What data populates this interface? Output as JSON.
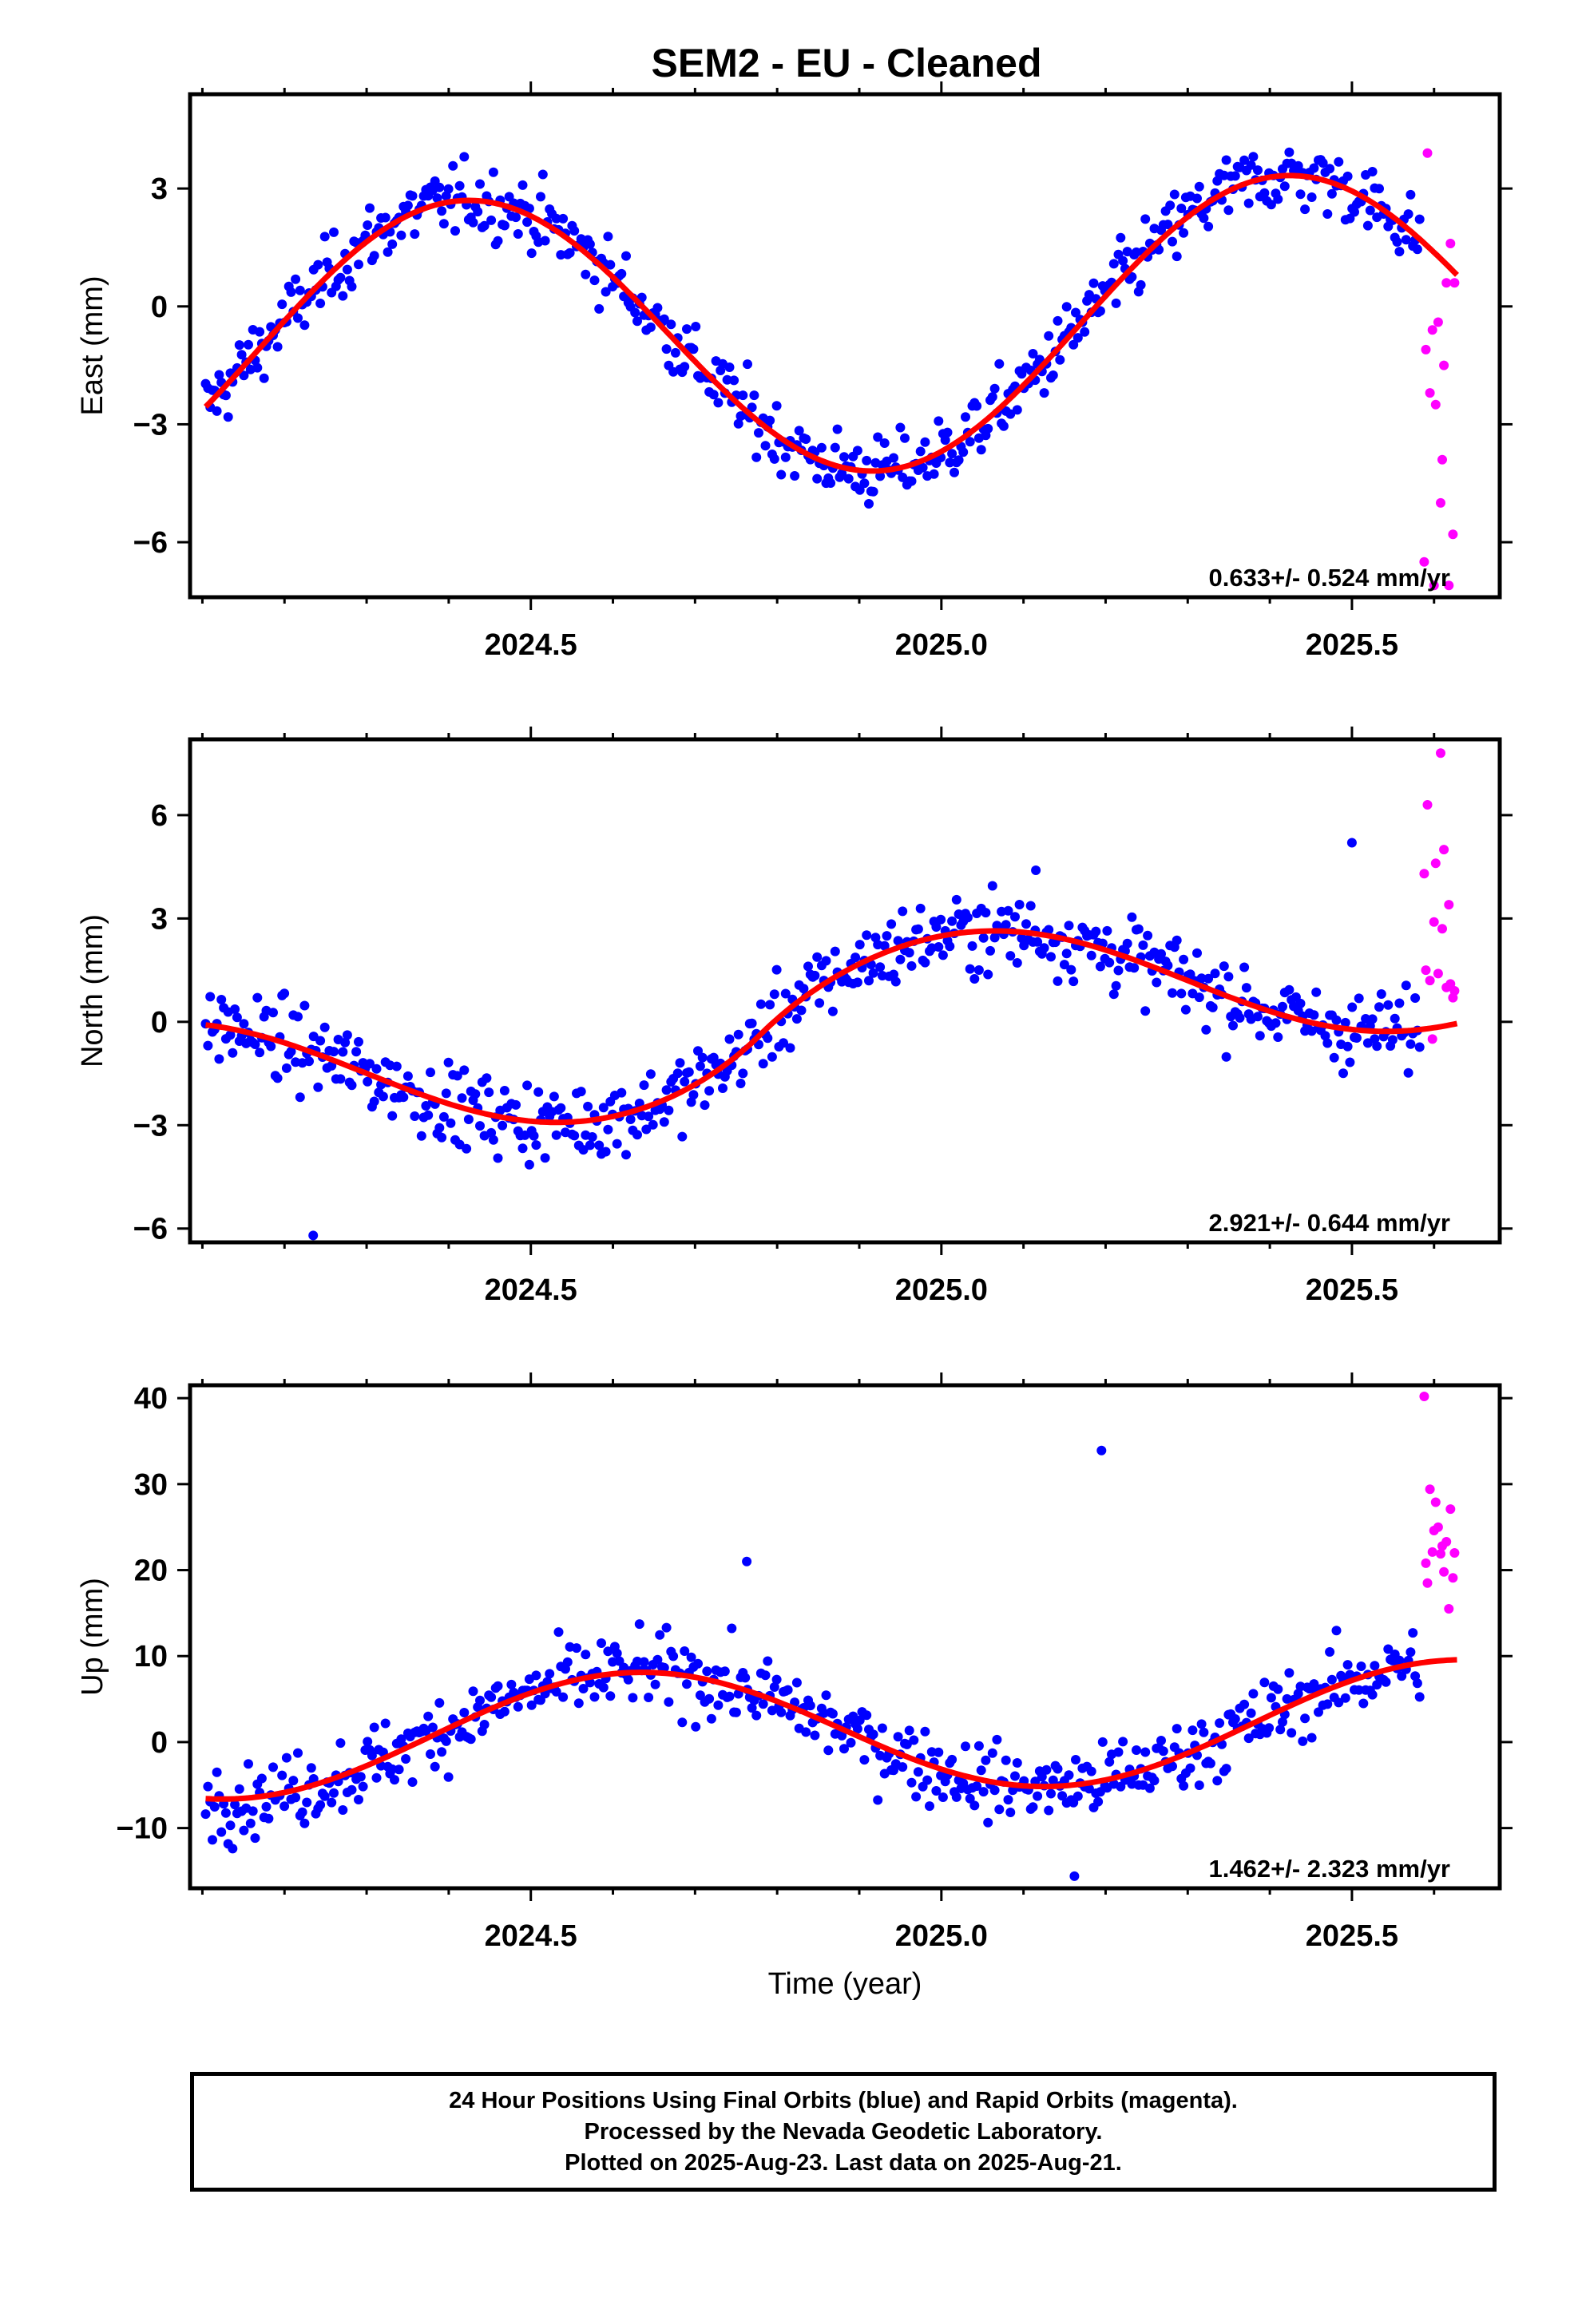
{
  "title": "SEM2  - EU - Cleaned",
  "colors": {
    "final": "#0000ff",
    "rapid": "#ff00ff",
    "fit": "#ff0000",
    "axis": "#000000"
  },
  "chart_data": [
    {
      "type": "scatter",
      "ylabel": "East (mm)",
      "xlabel": "",
      "xlim": [
        2024.085,
        2025.68
      ],
      "ylim": [
        -7.4,
        5.4
      ],
      "xticks": [
        2024.5,
        2025.0,
        2025.5
      ],
      "xtick_labels": [
        "2024.5",
        "2025.0",
        "2025.5"
      ],
      "yticks": [
        -6,
        -3,
        0,
        3
      ],
      "ytick_labels": [
        "−6",
        "−3",
        "0",
        "3"
      ],
      "rate_label": "0.633+/- 0.524 mm/yr",
      "model": {
        "offset": -0.6,
        "amp": 3.6,
        "phase_year": 2024.42,
        "trend": 0.633,
        "t0": 2024.9
      },
      "final_x_range": [
        2024.104,
        2025.584
      ],
      "noise": 0.75,
      "rapid_points": [
        [
          2025.588,
          -6.5
        ],
        [
          2025.59,
          -1.1
        ],
        [
          2025.592,
          3.9
        ],
        [
          2025.595,
          -2.2
        ],
        [
          2025.598,
          -0.6
        ],
        [
          2025.6,
          -7.1
        ],
        [
          2025.602,
          -2.5
        ],
        [
          2025.605,
          -0.4
        ],
        [
          2025.608,
          -5.0
        ],
        [
          2025.61,
          -3.9
        ],
        [
          2025.612,
          -1.5
        ],
        [
          2025.615,
          0.6
        ],
        [
          2025.618,
          -7.1
        ],
        [
          2025.62,
          1.6
        ],
        [
          2025.623,
          -5.8
        ],
        [
          2025.625,
          0.6
        ]
      ],
      "outlier_points": []
    },
    {
      "type": "scatter",
      "ylabel": "North (mm)",
      "xlabel": "",
      "xlim": [
        2024.085,
        2025.68
      ],
      "ylim": [
        -6.4,
        8.2
      ],
      "xticks": [
        2024.5,
        2025.0,
        2025.5
      ],
      "xtick_labels": [
        "2024.5",
        "2025.0",
        "2025.5"
      ],
      "yticks": [
        -6,
        -3,
        0,
        3,
        6
      ],
      "ytick_labels": [
        "−6",
        "−3",
        "0",
        "3",
        "6"
      ],
      "rate_label": "2.921+/- 0.644 mm/yr",
      "model": {
        "offset": -0.1,
        "amp": 1.6,
        "phase_year": 2025.05,
        "trend": 0.5,
        "t0": 2024.9,
        "step": 2.2,
        "step_at": 2024.78
      },
      "final_x_range": [
        2024.104,
        2025.584
      ],
      "noise": 0.95,
      "rapid_points": [
        [
          2025.588,
          4.3
        ],
        [
          2025.59,
          1.5
        ],
        [
          2025.592,
          6.3
        ],
        [
          2025.595,
          1.2
        ],
        [
          2025.598,
          -0.5
        ],
        [
          2025.6,
          2.9
        ],
        [
          2025.602,
          4.6
        ],
        [
          2025.605,
          1.4
        ],
        [
          2025.608,
          7.8
        ],
        [
          2025.61,
          2.7
        ],
        [
          2025.612,
          5.0
        ],
        [
          2025.615,
          1.0
        ],
        [
          2025.618,
          3.4
        ],
        [
          2025.62,
          1.1
        ],
        [
          2025.623,
          0.7
        ],
        [
          2025.625,
          0.9
        ]
      ],
      "outlier_points": [
        [
          2024.235,
          -6.2
        ],
        [
          2025.115,
          4.4
        ],
        [
          2025.5,
          5.2
        ]
      ]
    },
    {
      "type": "scatter",
      "ylabel": "Up (mm)",
      "xlabel": "Time (year)",
      "xlim": [
        2024.085,
        2025.68
      ],
      "ylim": [
        -17,
        41.5
      ],
      "xticks": [
        2024.5,
        2025.0,
        2025.5
      ],
      "xtick_labels": [
        "2024.5",
        "2025.0",
        "2025.5"
      ],
      "yticks": [
        -10,
        0,
        10,
        20,
        30,
        40
      ],
      "ytick_labels": [
        "−10",
        "0",
        "10",
        "20",
        "30",
        "40"
      ],
      "rate_label": "1.462+/- 2.323 mm/yr",
      "model": {
        "offset": 1.5,
        "amp": 7.0,
        "phase_year": 2024.63,
        "trend": 1.462,
        "t0": 2024.9
      },
      "final_x_range": [
        2024.104,
        2025.584
      ],
      "noise": 3.6,
      "rapid_points": [
        [
          2025.588,
          40.2
        ],
        [
          2025.59,
          20.8
        ],
        [
          2025.592,
          18.5
        ],
        [
          2025.595,
          29.4
        ],
        [
          2025.598,
          22.1
        ],
        [
          2025.6,
          24.6
        ],
        [
          2025.602,
          27.9
        ],
        [
          2025.605,
          25.0
        ],
        [
          2025.608,
          21.9
        ],
        [
          2025.61,
          22.8
        ],
        [
          2025.612,
          19.8
        ],
        [
          2025.615,
          23.3
        ],
        [
          2025.618,
          15.5
        ],
        [
          2025.62,
          27.1
        ],
        [
          2025.623,
          19.1
        ],
        [
          2025.625,
          22.0
        ]
      ],
      "outlier_points": [
        [
          2025.195,
          33.9
        ],
        [
          2024.763,
          21.0
        ],
        [
          2025.162,
          -15.6
        ]
      ]
    }
  ],
  "caption": {
    "line1": "24 Hour Positions Using Final Orbits (blue) and Rapid Orbits (magenta).",
    "line2": "Processed by the Nevada Geodetic Laboratory.",
    "line3": "Plotted on 2025-Aug-23. Last data on 2025-Aug-21."
  }
}
